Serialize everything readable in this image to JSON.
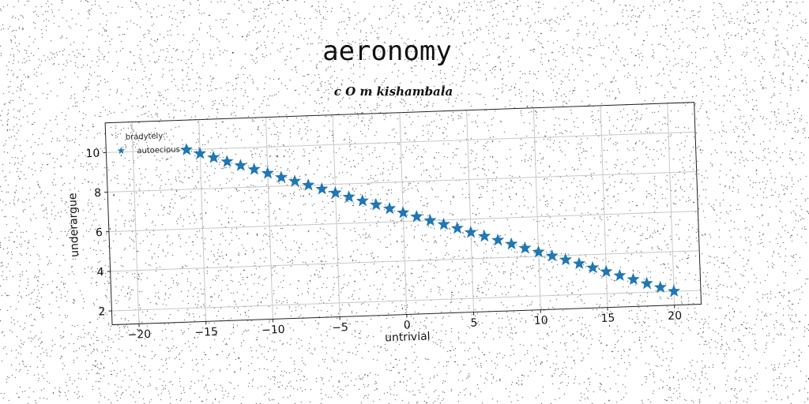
{
  "chart_data": {
    "type": "scatter",
    "title": "aeronomy",
    "subtitle": "c O m kishambala",
    "xlabel": "untrivial",
    "ylabel": "underargue",
    "xlim": [
      -22,
      22
    ],
    "ylim": [
      1.3,
      11.5
    ],
    "xticks": [
      -20,
      -15,
      -10,
      -5,
      0,
      5,
      10,
      15,
      20
    ],
    "yticks": [
      2,
      4,
      6,
      8,
      10
    ],
    "grid": true,
    "legend": {
      "title": "bradytely",
      "placement": "top-left",
      "entries": [
        {
          "label": "autoecious",
          "marker": "star"
        }
      ]
    },
    "series": [
      {
        "name": "autoecious",
        "marker": "star",
        "color": "#1f77b4",
        "x": [
          -16.0,
          -15.0,
          -14.0,
          -13.0,
          -12.0,
          -11.0,
          -10.0,
          -9.0,
          -8.0,
          -7.0,
          -6.0,
          -5.0,
          -4.0,
          -3.0,
          -2.0,
          -1.0,
          0.0,
          1.0,
          2.0,
          3.0,
          4.0,
          5.0,
          6.0,
          7.0,
          8.0,
          9.0,
          10.0,
          11.0,
          12.0,
          13.0,
          14.0,
          15.0,
          16.0,
          17.0,
          18.0,
          19.0,
          20.0
        ],
        "y": [
          10.0,
          9.78,
          9.56,
          9.33,
          9.11,
          8.89,
          8.67,
          8.44,
          8.22,
          8.0,
          7.78,
          7.56,
          7.33,
          7.11,
          6.89,
          6.67,
          6.44,
          6.22,
          6.0,
          5.78,
          5.56,
          5.33,
          5.11,
          4.89,
          4.67,
          4.44,
          4.22,
          4.0,
          3.78,
          3.56,
          3.33,
          3.11,
          2.89,
          2.67,
          2.44,
          2.22,
          2.0
        ]
      }
    ]
  }
}
